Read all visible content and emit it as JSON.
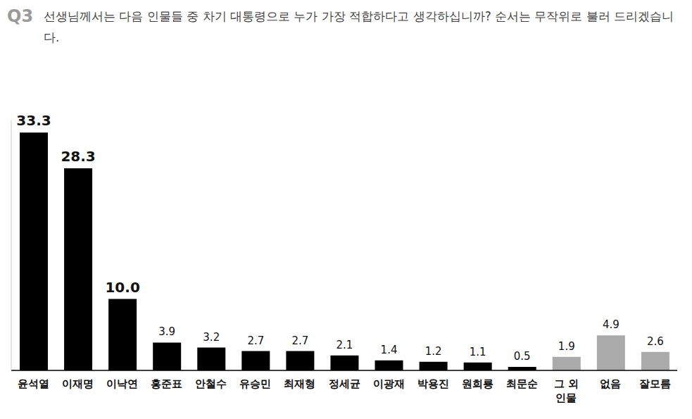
{
  "chart_data": {
    "type": "bar",
    "title": "Q3 선생님께서는 다음 인물들 중 차기 대통령으로 누가 가장 적합하다고 생각하십니까? 순서는 무작위로 불러 드리겠습니다.",
    "categories": [
      "윤석열",
      "이재명",
      "이낙연",
      "홍준표",
      "안철수",
      "유승민",
      "최재형",
      "정세균",
      "이광재",
      "박용진",
      "원희룡",
      "최문순",
      "그 외 인물",
      "없음",
      "잘모름"
    ],
    "values": [
      33.3,
      28.3,
      10.0,
      3.9,
      3.2,
      2.7,
      2.7,
      2.1,
      1.4,
      1.2,
      1.1,
      0.5,
      1.9,
      4.9,
      2.6
    ],
    "value_labels": [
      "33.3",
      "28.3",
      "10.0",
      "3.9",
      "3.2",
      "2.7",
      "2.7",
      "2.1",
      "1.4",
      "1.2",
      "1.1",
      "0.5",
      "1.9",
      "4.9",
      "2.6"
    ],
    "colors": [
      "#000000",
      "#000000",
      "#000000",
      "#000000",
      "#000000",
      "#000000",
      "#000000",
      "#000000",
      "#000000",
      "#000000",
      "#000000",
      "#000000",
      "#aaaaaa",
      "#aaaaaa",
      "#aaaaaa"
    ],
    "ylim": [
      0,
      35
    ],
    "data_labels": true,
    "tick_labels": "x",
    "grid": false
  }
}
